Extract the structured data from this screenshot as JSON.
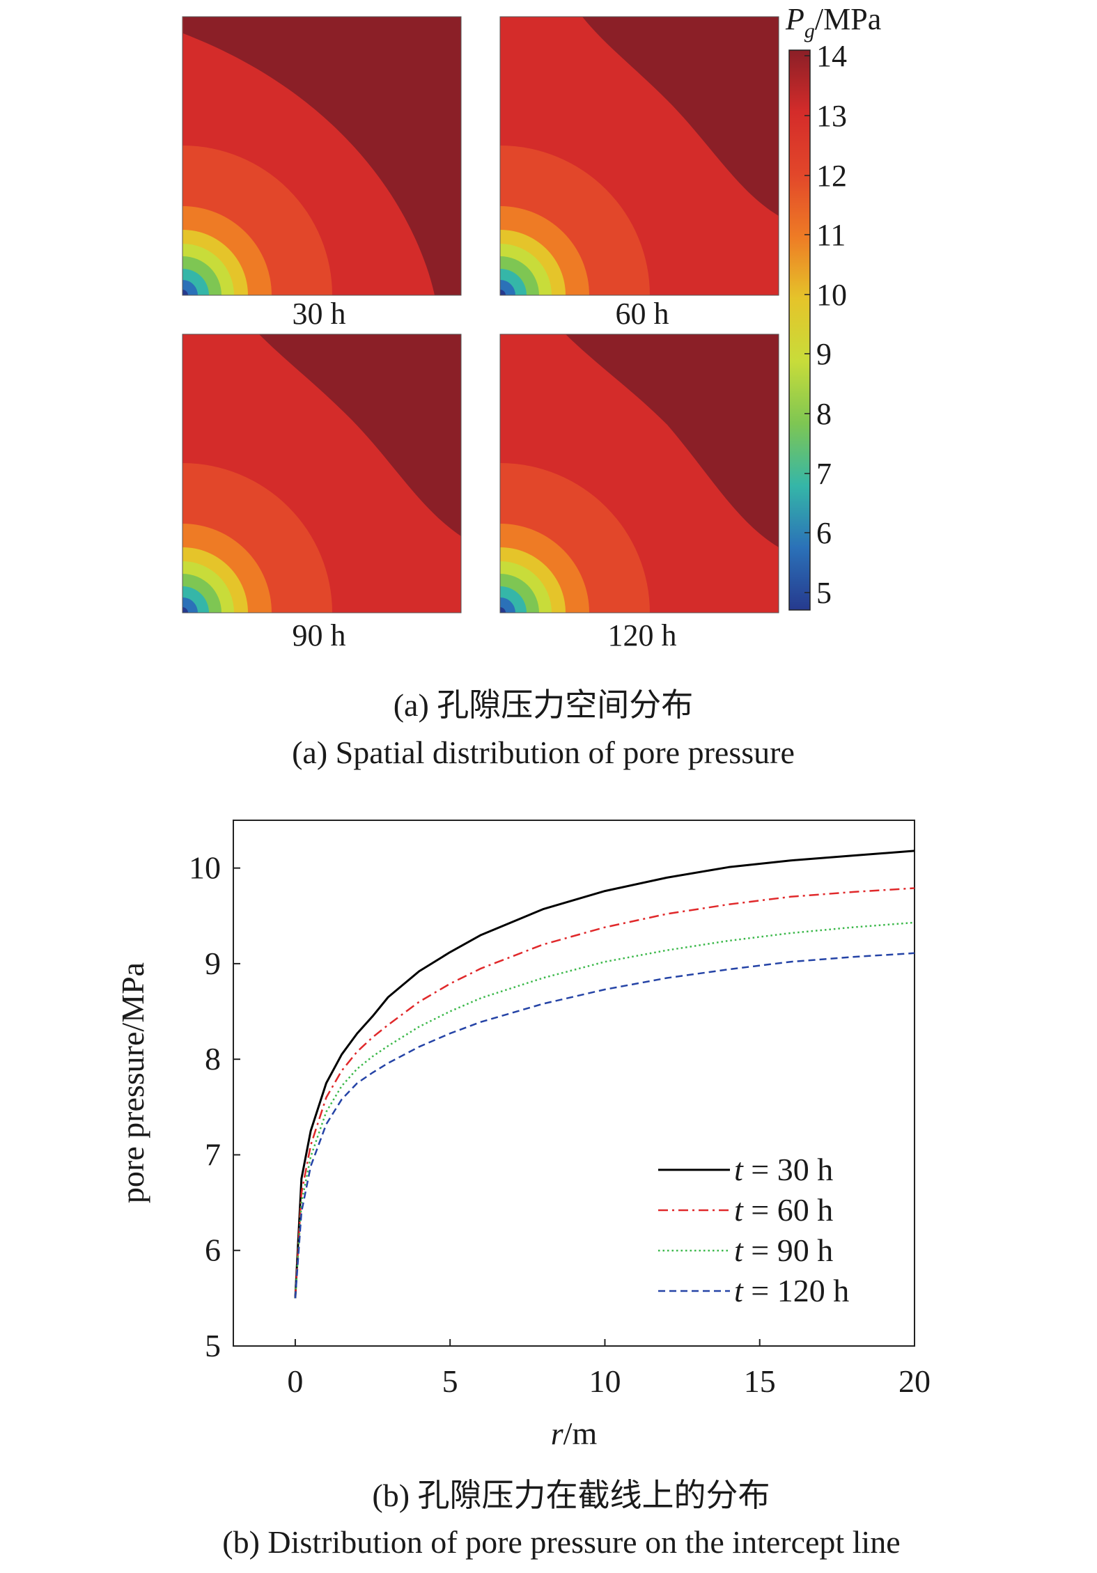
{
  "panel_a": {
    "colorbar_title_symbol": "P",
    "colorbar_title_subscript": "g",
    "colorbar_title_unit": "/MPa",
    "colorbar_ticks": [
      "14",
      "13",
      "12",
      "11",
      "10",
      "9",
      "8",
      "7",
      "6",
      "5"
    ],
    "maps": [
      {
        "label": "30 h"
      },
      {
        "label": "60 h"
      },
      {
        "label": "90 h"
      },
      {
        "label": "120 h"
      }
    ],
    "caption_cn": "(a) 孔隙压力空间分布",
    "caption_en": "(a) Spatial distribution of pore pressure"
  },
  "panel_b": {
    "caption_cn": "(b) 孔隙压力在截线上的分布",
    "caption_en": "(b) Distribution of pore pressure on the intercept line"
  },
  "colors": {
    "level_14": "#8b1f27",
    "level_13": "#d42c2a",
    "level_12": "#e2472a",
    "level_11": "#ee7b25",
    "level_10": "#e5c42a",
    "level_9": "#c8dc3a",
    "level_8": "#7ec653",
    "level_7": "#35b6a8",
    "level_6": "#2b71b8",
    "level_5": "#263a8e",
    "series_30h": "#000000",
    "series_60h": "#e0282a",
    "series_90h": "#3bb84a",
    "series_120h": "#2443a6"
  },
  "chart_data": {
    "type": "line",
    "xlabel_symbol": "r",
    "xlabel_unit": "/m",
    "ylabel": "pore pressure/MPa",
    "xlim": [
      -2,
      20
    ],
    "ylim": [
      5,
      10.5
    ],
    "xticks": [
      0,
      5,
      10,
      15,
      20
    ],
    "yticks": [
      5,
      6,
      7,
      8,
      9,
      10
    ],
    "grid": false,
    "legend_position": "bottom-right",
    "series": [
      {
        "name": "t = 30 h",
        "legend_symbol": "t",
        "legend_rest": " = 30 h",
        "style": "solid",
        "x": [
          0,
          0.2,
          0.5,
          1,
          1.5,
          2,
          2.5,
          3,
          4,
          5,
          6,
          8,
          10,
          12,
          14,
          16,
          18,
          20
        ],
        "y": [
          5.5,
          6.75,
          7.25,
          7.75,
          8.05,
          8.27,
          8.45,
          8.65,
          8.92,
          9.12,
          9.3,
          9.57,
          9.76,
          9.9,
          10.01,
          10.08,
          10.13,
          10.18
        ]
      },
      {
        "name": "t = 60 h",
        "legend_symbol": "t",
        "legend_rest": " = 60 h",
        "style": "dashdot",
        "x": [
          0,
          0.2,
          0.5,
          1,
          1.5,
          2,
          2.5,
          3,
          4,
          5,
          6,
          8,
          10,
          12,
          14,
          16,
          18,
          20
        ],
        "y": [
          5.5,
          6.6,
          7.1,
          7.6,
          7.88,
          8.08,
          8.23,
          8.36,
          8.6,
          8.79,
          8.95,
          9.2,
          9.38,
          9.52,
          9.62,
          9.7,
          9.75,
          9.79
        ]
      },
      {
        "name": "t = 90 h",
        "legend_symbol": "t",
        "legend_rest": " = 90 h",
        "style": "dotted",
        "x": [
          0,
          0.2,
          0.5,
          1,
          1.5,
          2,
          2.5,
          3,
          4,
          5,
          6,
          8,
          10,
          12,
          14,
          16,
          18,
          20
        ],
        "y": [
          5.5,
          6.5,
          6.98,
          7.45,
          7.72,
          7.9,
          8.03,
          8.14,
          8.34,
          8.5,
          8.64,
          8.85,
          9.02,
          9.14,
          9.24,
          9.32,
          9.38,
          9.43
        ]
      },
      {
        "name": "t = 120 h",
        "legend_symbol": "t",
        "legend_rest": " = 120 h",
        "style": "dashed",
        "x": [
          0,
          0.2,
          0.5,
          1,
          1.5,
          2,
          2.5,
          3,
          4,
          5,
          6,
          8,
          10,
          12,
          14,
          16,
          18,
          20
        ],
        "y": [
          5.5,
          6.4,
          6.88,
          7.32,
          7.58,
          7.75,
          7.86,
          7.96,
          8.13,
          8.27,
          8.39,
          8.58,
          8.73,
          8.85,
          8.94,
          9.02,
          9.07,
          9.11
        ]
      }
    ]
  }
}
